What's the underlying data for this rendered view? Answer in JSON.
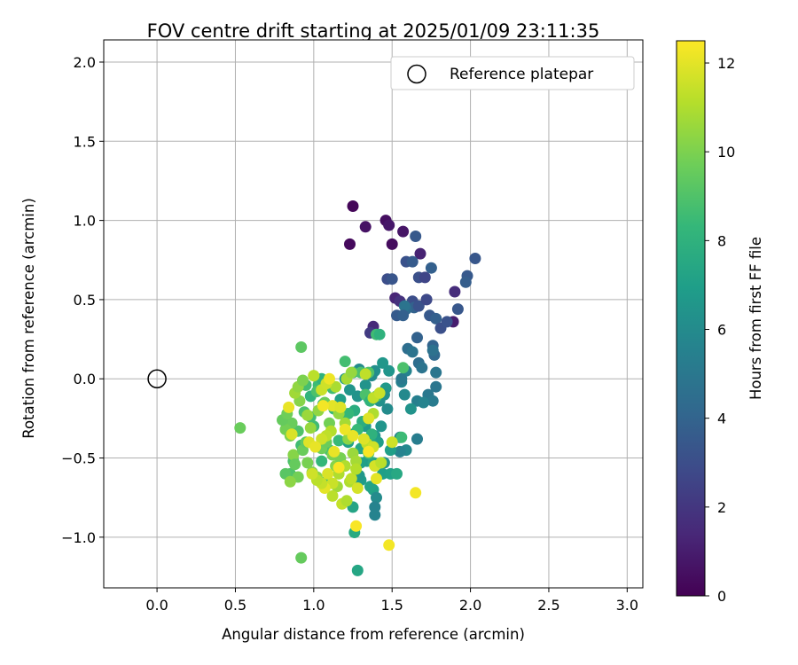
{
  "chart_data": {
    "type": "scatter",
    "title": "FOV centre drift starting at 2025/01/09 23:11:35",
    "xlabel": "Angular distance from reference (arcmin)",
    "ylabel": "Rotation from reference (arcmin)",
    "xlim": [
      -0.34,
      3.1
    ],
    "ylim": [
      -1.32,
      2.14
    ],
    "xticks": [
      0.0,
      0.5,
      1.0,
      1.5,
      2.0,
      2.5,
      3.0
    ],
    "xtick_labels": [
      "0.0",
      "0.5",
      "1.0",
      "1.5",
      "2.0",
      "2.5",
      "3.0"
    ],
    "yticks": [
      -1.0,
      -0.5,
      0.0,
      0.5,
      1.0,
      1.5,
      2.0
    ],
    "ytick_labels": [
      "−1.0",
      "−0.5",
      "0.0",
      "0.5",
      "1.0",
      "1.5",
      "2.0"
    ],
    "grid": true,
    "legend": {
      "position": "top-right",
      "entries": [
        "Reference platepar"
      ]
    },
    "reference_point": {
      "x": 0.0,
      "y": 0.0,
      "marker": "hollow-circle",
      "color": "#000000"
    },
    "colorbar": {
      "label": "Hours from first FF file",
      "range": [
        0,
        12.5
      ],
      "ticks": [
        0,
        2,
        4,
        6,
        8,
        10,
        12
      ],
      "tick_labels": [
        "0",
        "2",
        "4",
        "6",
        "8",
        "10",
        "12"
      ],
      "colormap": "viridis",
      "colormap_stops": [
        "#440154",
        "#482878",
        "#3e4989",
        "#31688e",
        "#26828e",
        "#1f9e89",
        "#35b779",
        "#6ece58",
        "#b5de2b",
        "#fde725"
      ]
    },
    "series": [
      {
        "points": [
          [
            1.25,
            1.09,
            0.2
          ],
          [
            1.23,
            0.85,
            0.3
          ],
          [
            1.33,
            0.96,
            0.6
          ],
          [
            1.46,
            1.0,
            0.5
          ],
          [
            1.48,
            0.97,
            0.8
          ],
          [
            1.5,
            0.85,
            0.4
          ],
          [
            1.57,
            0.93,
            0.7
          ],
          [
            1.68,
            0.79,
            1.2
          ],
          [
            1.52,
            0.51,
            1.3
          ],
          [
            1.9,
            0.55,
            1.6
          ],
          [
            1.89,
            0.36,
            1.0
          ],
          [
            1.55,
            0.49,
            1.8
          ],
          [
            1.38,
            0.33,
            1.5
          ],
          [
            1.36,
            0.29,
            2.2
          ],
          [
            1.65,
            0.9,
            3.5
          ],
          [
            1.59,
            0.74,
            3.2
          ],
          [
            1.63,
            0.74,
            3.6
          ],
          [
            1.47,
            0.63,
            3.0
          ],
          [
            1.5,
            0.63,
            3.3
          ],
          [
            1.67,
            0.64,
            3.1
          ],
          [
            1.71,
            0.64,
            2.6
          ],
          [
            1.75,
            0.7,
            3.8
          ],
          [
            2.03,
            0.76,
            3.4
          ],
          [
            1.98,
            0.65,
            3.5
          ],
          [
            1.97,
            0.61,
            3.7
          ],
          [
            1.92,
            0.44,
            3.4
          ],
          [
            1.63,
            0.49,
            3.0
          ],
          [
            1.64,
            0.45,
            3.9
          ],
          [
            1.67,
            0.46,
            3.2
          ],
          [
            1.72,
            0.5,
            2.8
          ],
          [
            1.59,
            0.44,
            4.3
          ],
          [
            1.58,
            0.46,
            4.8
          ],
          [
            1.53,
            0.4,
            3.6
          ],
          [
            1.57,
            0.4,
            3.8
          ],
          [
            1.74,
            0.4,
            3.5
          ],
          [
            1.78,
            0.38,
            3.8
          ],
          [
            1.81,
            0.32,
            3.1
          ],
          [
            1.85,
            0.36,
            3.2
          ],
          [
            1.66,
            0.26,
            3.9
          ],
          [
            1.76,
            0.21,
            4.0
          ],
          [
            1.77,
            0.15,
            4.3
          ],
          [
            1.76,
            0.18,
            4.7
          ],
          [
            1.6,
            0.19,
            4.5
          ],
          [
            1.63,
            0.17,
            4.8
          ],
          [
            1.67,
            0.1,
            4.5
          ],
          [
            1.69,
            0.07,
            4.8
          ],
          [
            1.78,
            0.04,
            4.9
          ],
          [
            1.78,
            -0.05,
            4.9
          ],
          [
            1.73,
            -0.1,
            5.0
          ],
          [
            1.76,
            -0.14,
            5.2
          ],
          [
            1.66,
            -0.14,
            5.4
          ],
          [
            1.62,
            -0.19,
            6.4
          ],
          [
            1.66,
            -0.38,
            5.3
          ],
          [
            1.59,
            -0.45,
            5.9
          ],
          [
            1.55,
            -0.46,
            5.6
          ],
          [
            1.55,
            -0.37,
            5.6
          ],
          [
            1.56,
            -0.02,
            5.5
          ],
          [
            1.59,
            0.05,
            5.6
          ],
          [
            1.58,
            -0.1,
            5.9
          ],
          [
            1.56,
            0.0,
            5.1
          ],
          [
            1.7,
            -0.15,
            5.6
          ],
          [
            1.44,
            0.1,
            6.6
          ],
          [
            1.48,
            0.05,
            6.5
          ],
          [
            1.39,
            0.05,
            6.2
          ],
          [
            1.37,
            0.02,
            6.0
          ],
          [
            1.29,
            0.06,
            6.0
          ],
          [
            1.33,
            -0.04,
            6.4
          ],
          [
            1.35,
            -0.12,
            6.7
          ],
          [
            1.42,
            -0.14,
            6.3
          ],
          [
            1.46,
            -0.06,
            6.7
          ],
          [
            1.45,
            -0.1,
            6.3
          ],
          [
            1.47,
            -0.19,
            6.0
          ],
          [
            1.43,
            -0.3,
            6.5
          ],
          [
            1.39,
            -0.36,
            6.6
          ],
          [
            1.41,
            -0.4,
            6.9
          ],
          [
            1.49,
            -0.45,
            7.0
          ],
          [
            1.45,
            -0.53,
            6.4
          ],
          [
            1.44,
            -0.6,
            7.0
          ],
          [
            1.49,
            -0.6,
            7.1
          ],
          [
            1.53,
            -0.6,
            7.5
          ],
          [
            1.38,
            -0.7,
            7.1
          ],
          [
            1.36,
            -0.68,
            7.2
          ],
          [
            1.4,
            -0.75,
            6.0
          ],
          [
            1.39,
            -0.81,
            5.6
          ],
          [
            1.39,
            -0.86,
            5.6
          ],
          [
            1.3,
            -0.64,
            6.9
          ],
          [
            1.24,
            -0.64,
            6.6
          ],
          [
            1.25,
            -0.81,
            7.3
          ],
          [
            1.26,
            -0.97,
            7.6
          ],
          [
            1.28,
            -1.21,
            7.4
          ],
          [
            1.33,
            -0.3,
            6.8
          ],
          [
            1.3,
            -0.44,
            7.4
          ],
          [
            1.36,
            -0.39,
            7.2
          ],
          [
            1.34,
            -0.52,
            6.8
          ],
          [
            1.3,
            -0.53,
            7.0
          ],
          [
            1.29,
            -0.61,
            6.6
          ],
          [
            1.25,
            -0.35,
            6.9
          ],
          [
            1.22,
            -0.4,
            7.1
          ],
          [
            1.38,
            -0.53,
            7.4
          ],
          [
            1.28,
            -0.11,
            6.4
          ],
          [
            1.26,
            -0.2,
            7.7
          ],
          [
            1.31,
            -0.27,
            7.8
          ],
          [
            1.23,
            -0.07,
            6.5
          ],
          [
            1.2,
            0.0,
            6.7
          ],
          [
            1.17,
            -0.13,
            7.0
          ],
          [
            1.37,
            -0.35,
            8.0
          ],
          [
            1.56,
            -0.37,
            8.5
          ],
          [
            1.4,
            0.28,
            8.6
          ],
          [
            1.42,
            0.28,
            8.0
          ],
          [
            1.57,
            0.07,
            8.9
          ],
          [
            1.2,
            0.11,
            8.7
          ],
          [
            1.25,
            0.04,
            8.2
          ],
          [
            1.33,
            -0.1,
            8.9
          ],
          [
            1.36,
            -0.14,
            8.1
          ],
          [
            1.4,
            -0.11,
            8.8
          ],
          [
            1.28,
            -0.32,
            8.4
          ],
          [
            1.35,
            -0.47,
            8.8
          ],
          [
            1.16,
            -0.39,
            8.4
          ],
          [
            1.1,
            -0.45,
            8.8
          ],
          [
            1.08,
            -0.65,
            8.5
          ],
          [
            1.05,
            -0.52,
            8.3
          ],
          [
            1.0,
            -0.3,
            8.6
          ],
          [
            0.98,
            -0.24,
            8.7
          ],
          [
            0.94,
            -0.21,
            8.9
          ],
          [
            0.92,
            -0.42,
            8.6
          ],
          [
            0.87,
            -0.52,
            8.9
          ],
          [
            0.85,
            -0.6,
            9.0
          ],
          [
            0.82,
            -0.6,
            9.2
          ],
          [
            0.9,
            -0.33,
            9.0
          ],
          [
            0.95,
            -0.04,
            8.7
          ],
          [
            0.98,
            -0.11,
            8.1
          ],
          [
            1.03,
            -0.04,
            8.5
          ],
          [
            1.05,
            0.0,
            8.0
          ],
          [
            1.02,
            -0.08,
            8.9
          ],
          [
            1.12,
            -0.06,
            8.6
          ],
          [
            1.18,
            -0.22,
            8.4
          ],
          [
            1.22,
            -0.22,
            8.3
          ],
          [
            1.35,
            0.04,
            9.0
          ],
          [
            1.3,
            0.04,
            8.9
          ],
          [
            1.06,
            -0.16,
            8.0
          ],
          [
            1.13,
            -0.19,
            8.3
          ],
          [
            0.92,
            0.2,
            9.3
          ],
          [
            0.53,
            -0.31,
            9.6
          ],
          [
            0.92,
            -1.13,
            9.5
          ],
          [
            0.86,
            -0.28,
            9.6
          ],
          [
            0.82,
            -0.32,
            9.8
          ],
          [
            0.8,
            -0.26,
            9.5
          ],
          [
            0.83,
            -0.22,
            9.7
          ],
          [
            0.85,
            -0.36,
            10.0
          ],
          [
            0.87,
            -0.48,
            10.2
          ],
          [
            0.9,
            -0.62,
            9.8
          ],
          [
            0.88,
            -0.54,
            9.5
          ],
          [
            0.85,
            -0.65,
            10.3
          ],
          [
            0.93,
            -0.45,
            9.6
          ],
          [
            0.95,
            -0.4,
            9.4
          ],
          [
            0.96,
            -0.53,
            9.9
          ],
          [
            0.99,
            -0.59,
            10.1
          ],
          [
            1.02,
            -0.62,
            10.3
          ],
          [
            1.05,
            -0.44,
            9.7
          ],
          [
            1.08,
            -0.4,
            9.6
          ],
          [
            1.12,
            -0.48,
            10.0
          ],
          [
            1.14,
            -0.55,
            10.2
          ],
          [
            1.17,
            -0.5,
            9.9
          ],
          [
            1.1,
            -0.28,
            9.8
          ],
          [
            1.07,
            -0.15,
            9.6
          ],
          [
            1.03,
            -0.2,
            10.4
          ],
          [
            0.98,
            -0.31,
            10.5
          ],
          [
            0.96,
            -0.23,
            10.6
          ],
          [
            0.91,
            -0.14,
            10.2
          ],
          [
            0.88,
            -0.09,
            10.7
          ],
          [
            0.9,
            -0.05,
            10.4
          ],
          [
            0.93,
            -0.01,
            10.0
          ],
          [
            1.0,
            0.02,
            10.8
          ],
          [
            1.14,
            -0.05,
            10.9
          ],
          [
            1.16,
            -0.22,
            10.5
          ],
          [
            1.2,
            -0.28,
            10.8
          ],
          [
            1.22,
            -0.38,
            10.3
          ],
          [
            1.25,
            -0.47,
            10.6
          ],
          [
            1.27,
            -0.52,
            10.8
          ],
          [
            1.2,
            -0.55,
            11.0
          ],
          [
            1.16,
            -0.6,
            11.0
          ],
          [
            1.23,
            -0.65,
            11.0
          ],
          [
            1.15,
            -0.68,
            10.7
          ],
          [
            1.12,
            -0.74,
            11.2
          ],
          [
            1.18,
            -0.79,
            11.4
          ],
          [
            1.21,
            -0.77,
            11.0
          ],
          [
            1.24,
            -0.63,
            11.3
          ],
          [
            1.27,
            -0.57,
            11.1
          ],
          [
            1.21,
            0.0,
            10.8
          ],
          [
            1.24,
            0.04,
            10.5
          ],
          [
            1.38,
            -0.22,
            11.0
          ],
          [
            1.34,
            -0.41,
            11.3
          ],
          [
            1.38,
            -0.43,
            11.6
          ],
          [
            1.32,
            -0.38,
            11.9
          ],
          [
            1.39,
            -0.55,
            11.7
          ],
          [
            1.4,
            -0.63,
            12.0
          ],
          [
            1.43,
            -0.53,
            11.2
          ],
          [
            1.5,
            -0.4,
            11.6
          ],
          [
            1.38,
            -0.12,
            11.3
          ],
          [
            1.42,
            -0.09,
            11.5
          ],
          [
            1.35,
            -0.25,
            11.9
          ],
          [
            1.11,
            -0.33,
            11.1
          ],
          [
            1.08,
            -0.36,
            11.3
          ],
          [
            1.05,
            -0.38,
            11.6
          ],
          [
            1.09,
            -0.6,
            11.8
          ],
          [
            1.12,
            -0.66,
            11.5
          ],
          [
            1.07,
            -0.69,
            12.0
          ],
          [
            1.05,
            -0.66,
            11.4
          ],
          [
            1.02,
            -0.64,
            11.2
          ],
          [
            0.99,
            -0.6,
            11.6
          ],
          [
            0.97,
            -0.4,
            11.9
          ],
          [
            1.01,
            -0.43,
            12.1
          ],
          [
            1.0,
            0.02,
            11.2
          ],
          [
            1.05,
            -0.07,
            11.5
          ],
          [
            1.08,
            -0.03,
            11.6
          ],
          [
            1.12,
            -0.17,
            12.0
          ],
          [
            1.17,
            -0.18,
            11.9
          ],
          [
            1.2,
            -0.32,
            12.2
          ],
          [
            1.25,
            -0.36,
            12.1
          ],
          [
            1.28,
            -0.69,
            11.7
          ],
          [
            1.27,
            -0.93,
            12.4
          ],
          [
            1.48,
            -1.05,
            12.3
          ],
          [
            1.65,
            -0.72,
            12.3
          ],
          [
            1.35,
            -0.46,
            12.4
          ],
          [
            1.16,
            -0.56,
            12.4
          ],
          [
            1.06,
            -0.17,
            12.3
          ],
          [
            0.84,
            -0.18,
            12.1
          ],
          [
            0.86,
            -0.35,
            11.8
          ],
          [
            1.13,
            -0.46,
            12.1
          ],
          [
            1.33,
            0.03,
            11.3
          ],
          [
            1.1,
            0.0,
            12.2
          ]
        ]
      }
    ]
  }
}
